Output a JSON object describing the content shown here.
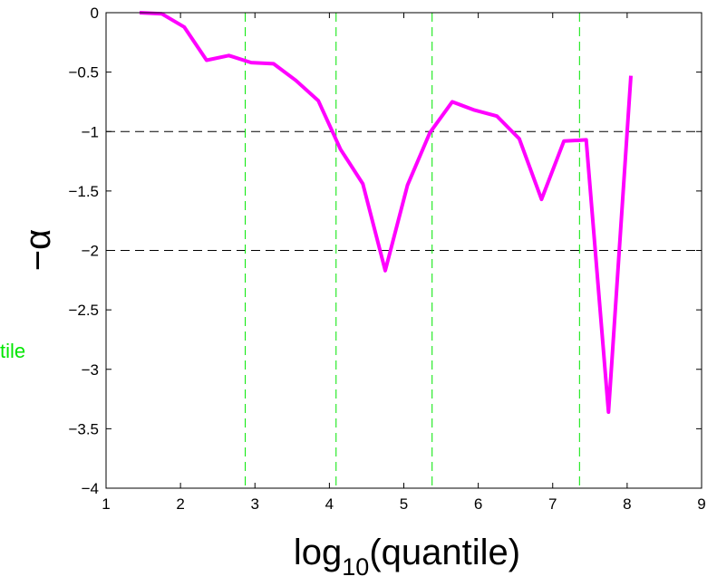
{
  "chart_data": {
    "type": "line",
    "xlabel": {
      "base": "log",
      "sub": "10",
      "rest": "(quantile)"
    },
    "ylabel": "−α",
    "side_text": "tile",
    "xlim": [
      1,
      9
    ],
    "ylim": [
      -4,
      0
    ],
    "x_ticks": [
      1,
      2,
      3,
      4,
      5,
      6,
      7,
      8,
      9
    ],
    "y_ticks": [
      0,
      -0.5,
      -1,
      -1.5,
      -2,
      -2.5,
      -3,
      -3.5,
      -4
    ],
    "y_tick_labels": [
      "0",
      "−0.5",
      "−1",
      "−1.5",
      "−2",
      "−2.5",
      "−3",
      "−3.5",
      "−4"
    ],
    "reference_lines": {
      "horizontal": [
        -1,
        -2
      ],
      "vertical": [
        2.87,
        4.09,
        5.38,
        7.36
      ],
      "horizontal_color": "#000000",
      "vertical_color": "#00e600"
    },
    "series": [
      {
        "color": "#ff00ff",
        "x": [
          1.45,
          1.75,
          2.05,
          2.35,
          2.65,
          2.95,
          3.25,
          3.55,
          3.85,
          4.15,
          4.45,
          4.75,
          5.05,
          5.35,
          5.65,
          5.95,
          6.25,
          6.55,
          6.85,
          7.15,
          7.45,
          7.75,
          8.05
        ],
        "y": [
          0.0,
          -0.01,
          -0.12,
          -0.4,
          -0.36,
          -0.42,
          -0.43,
          -0.57,
          -0.74,
          -1.15,
          -1.44,
          -2.17,
          -1.45,
          -1.01,
          -0.75,
          -0.82,
          -0.87,
          -1.06,
          -1.57,
          -1.08,
          -1.07,
          -3.36,
          -0.53
        ]
      }
    ]
  }
}
